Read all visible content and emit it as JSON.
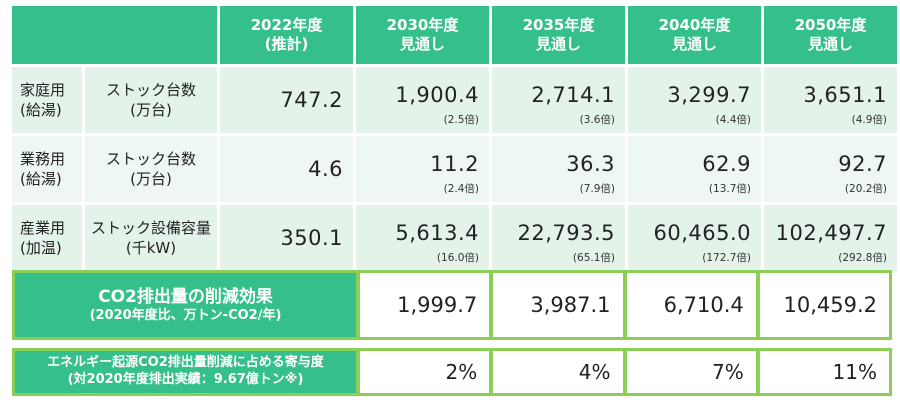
{
  "headers": [
    {
      "year": "2022年度",
      "note": "(推計)"
    },
    {
      "year": "2030年度",
      "note": "見通し"
    },
    {
      "year": "2035年度",
      "note": "見通し"
    },
    {
      "year": "2040年度",
      "note": "見通し"
    },
    {
      "year": "2050年度",
      "note": "見通し"
    }
  ],
  "rows": [
    {
      "category": [
        "家庭用",
        "(給湯)"
      ],
      "metric": [
        "ストック台数",
        "(万台)"
      ],
      "values": [
        "747.2",
        "1,900.4",
        "2,714.1",
        "3,299.7",
        "3,651.1"
      ],
      "multipliers": [
        "",
        "(2.5倍)",
        "(3.6倍)",
        "(4.4倍)",
        "(4.9倍)"
      ]
    },
    {
      "category": [
        "業務用",
        "(給湯)"
      ],
      "metric": [
        "ストック台数",
        "(万台)"
      ],
      "values": [
        "4.6",
        "11.2",
        "36.3",
        "62.9",
        "92.7"
      ],
      "multipliers": [
        "",
        "(2.4倍)",
        "(7.9倍)",
        "(13.7倍)",
        "(20.2倍)"
      ]
    },
    {
      "category": [
        "産業用",
        "(加温)"
      ],
      "metric": [
        "ストック設備容量",
        "(千kW)"
      ],
      "values": [
        "350.1",
        "5,613.4",
        "22,793.5",
        "60,465.0",
        "102,497.7"
      ],
      "multipliers": [
        "",
        "(16.0倍)",
        "(65.1倍)",
        "(172.7倍)",
        "(292.8倍)"
      ]
    }
  ],
  "co2_reduction": {
    "label_line1": "CO2排出量の削減効果",
    "label_line2": "(2020年度比、万トン-CO2/年)",
    "values": [
      "1,999.7",
      "3,987.1",
      "6,710.4",
      "10,459.2"
    ]
  },
  "contribution": {
    "label_line1": "エネルギー起源CO2排出量削減に占める寄与度",
    "label_line2": "(対2020年度排出実績：9.67億トン※)",
    "values": [
      "2%",
      "4%",
      "7%",
      "11%"
    ]
  },
  "colors": {
    "header_green": "#35c08b",
    "band_border": "#8bcf57",
    "cell_light": "#e4f3ea"
  }
}
